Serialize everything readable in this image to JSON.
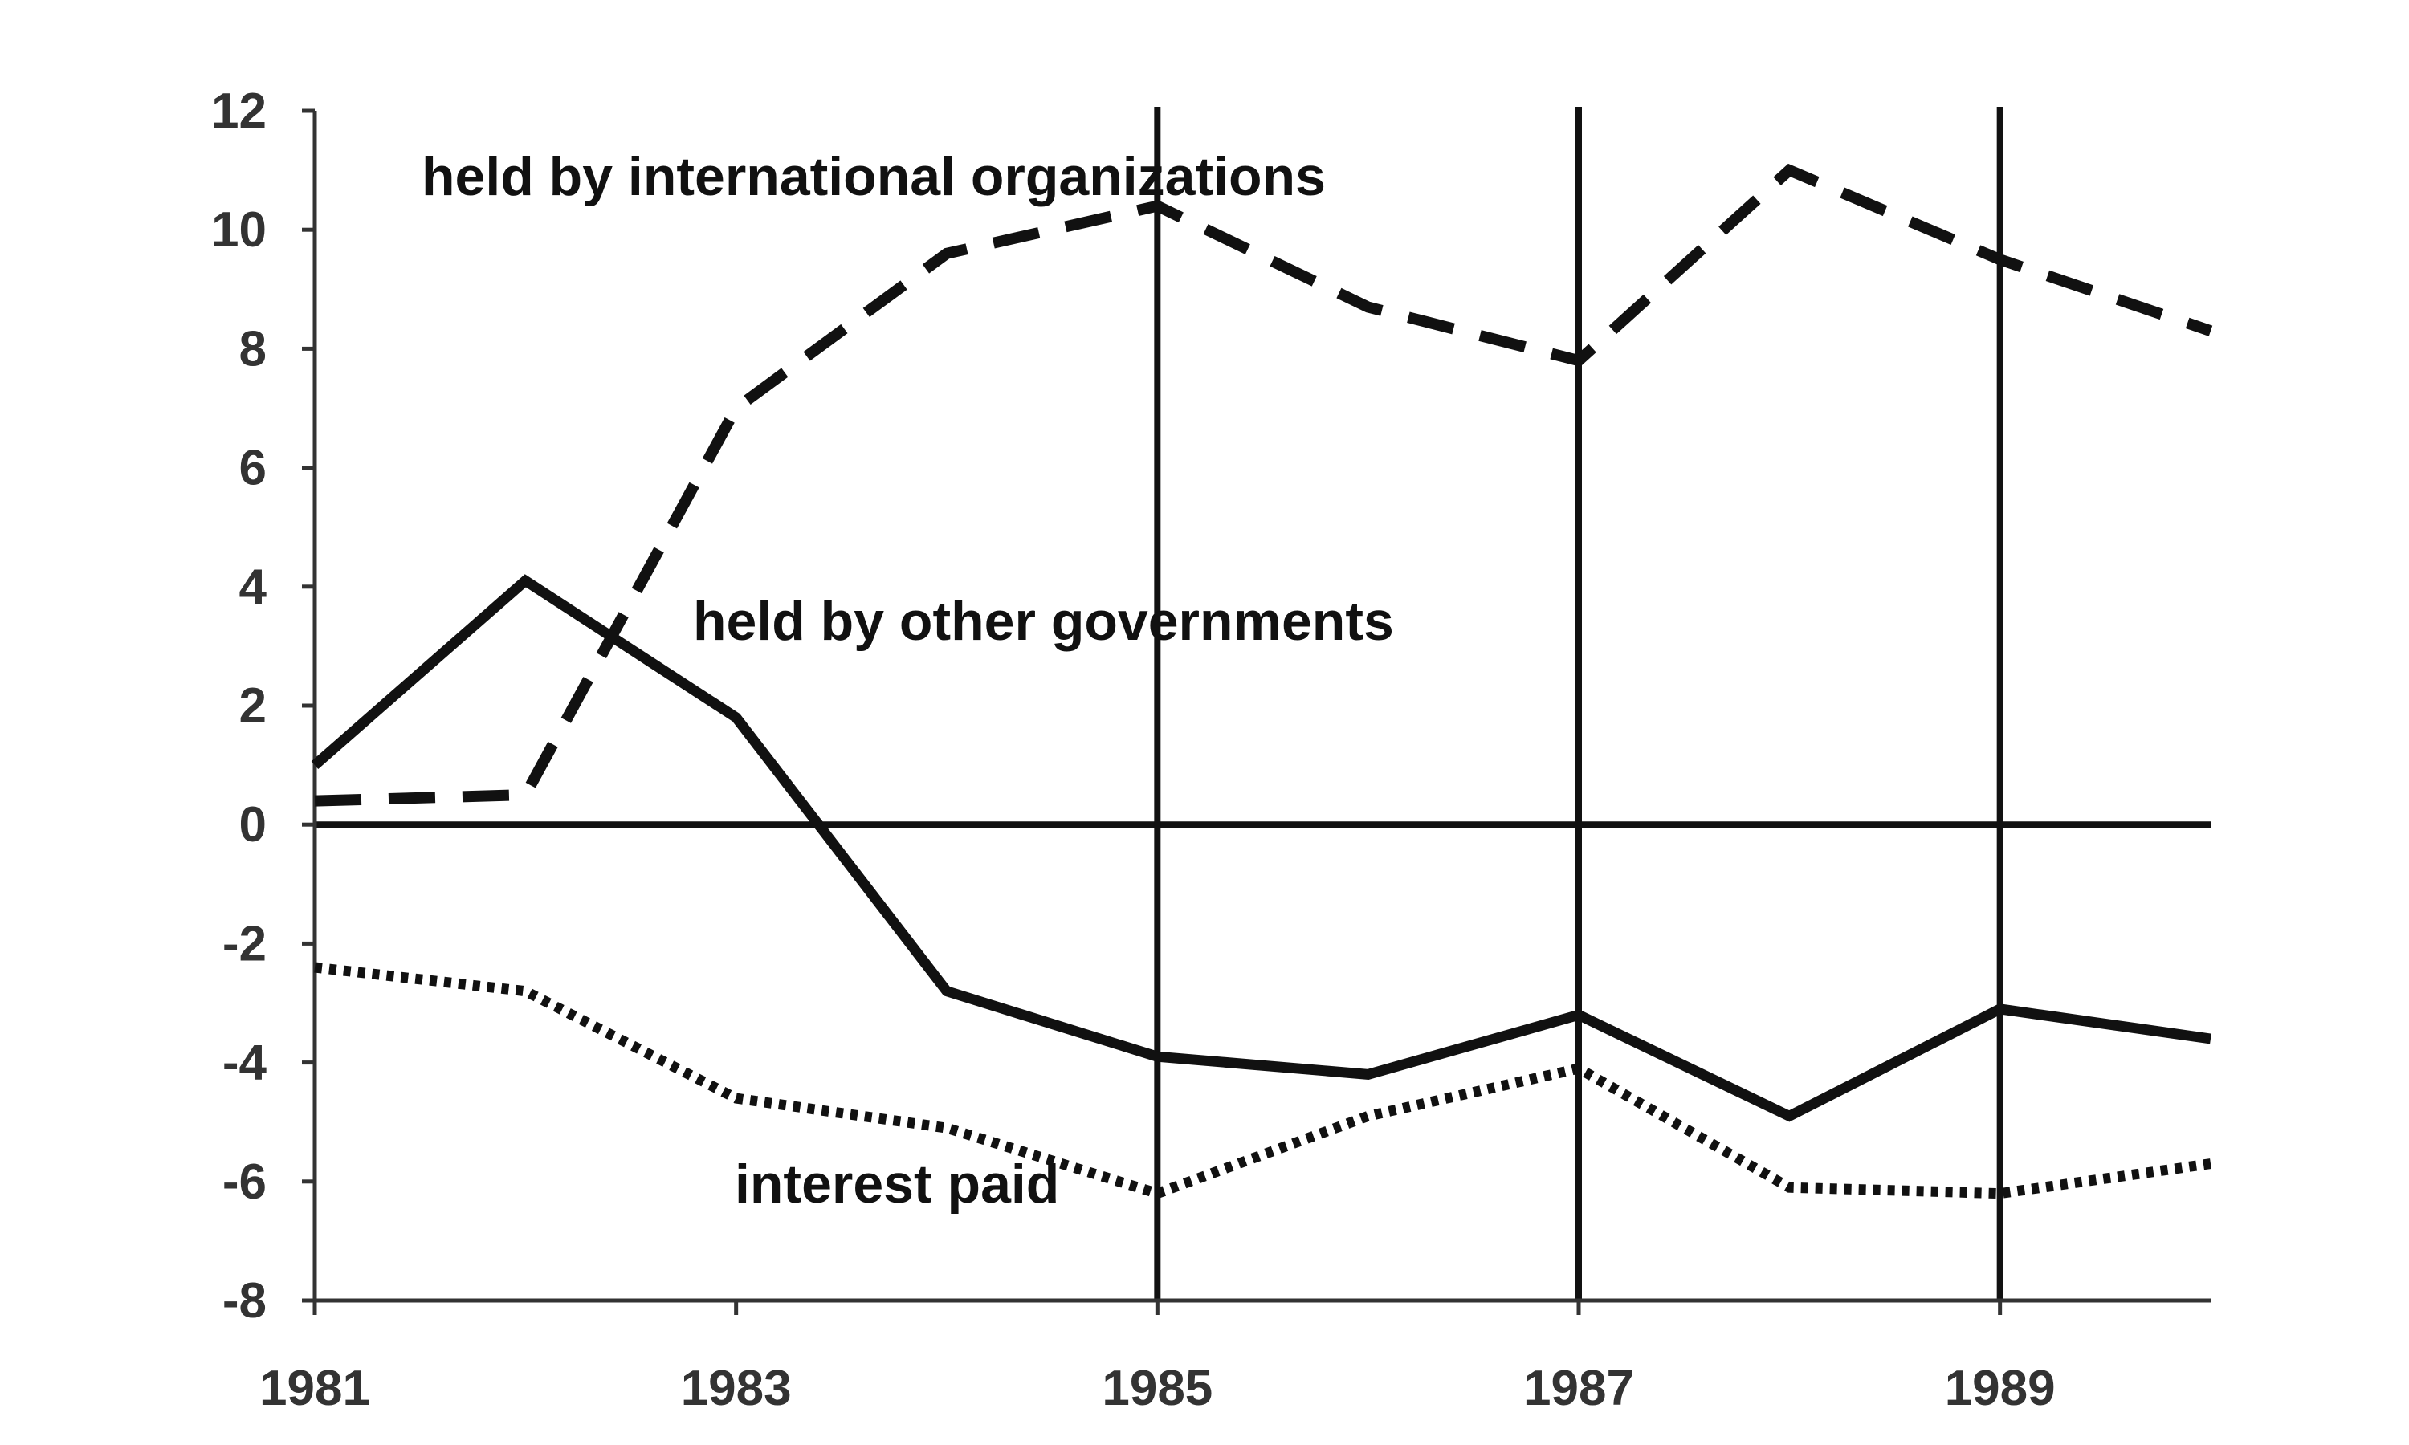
{
  "chart_data": {
    "type": "line",
    "title": "",
    "xlabel": "",
    "ylabel": "",
    "xlim": [
      1981,
      1990
    ],
    "ylim": [
      -8,
      12
    ],
    "x_ticks": [
      1981,
      1983,
      1985,
      1987,
      1989
    ],
    "x_tick_labels": [
      "1981",
      "1983",
      "1985",
      "1987",
      "1989"
    ],
    "y_ticks": [
      -8,
      -6,
      -4,
      -2,
      0,
      2,
      4,
      6,
      8,
      10,
      12
    ],
    "y_tick_labels": [
      "-8",
      "-6",
      "-4",
      "-2",
      "0",
      "2",
      "4",
      "6",
      "8",
      "10",
      "12"
    ],
    "grid": false,
    "reference_lines": {
      "horizontal": [
        0
      ],
      "vertical": [
        1985,
        1987,
        1989
      ]
    },
    "x": [
      1981,
      1982,
      1983,
      1984,
      1985,
      1986,
      1987,
      1988,
      1989,
      1990
    ],
    "series": [
      {
        "name": "held by international organizations",
        "style": "dashed",
        "color": "#111111",
        "values": [
          0.4,
          0.5,
          7.0,
          9.6,
          10.4,
          8.7,
          7.8,
          11.0,
          9.5,
          8.3
        ]
      },
      {
        "name": "held by other governments",
        "style": "solid",
        "color": "#111111",
        "values": [
          1.0,
          4.1,
          1.8,
          -2.8,
          -3.9,
          -4.2,
          -3.2,
          -4.9,
          -3.1,
          -3.6
        ]
      },
      {
        "name": "interest paid",
        "style": "dotted",
        "color": "#111111",
        "values": [
          -2.4,
          -2.8,
          -4.6,
          -5.1,
          -6.2,
          -4.9,
          -4.1,
          -6.1,
          -6.2,
          -5.7
        ]
      }
    ]
  }
}
